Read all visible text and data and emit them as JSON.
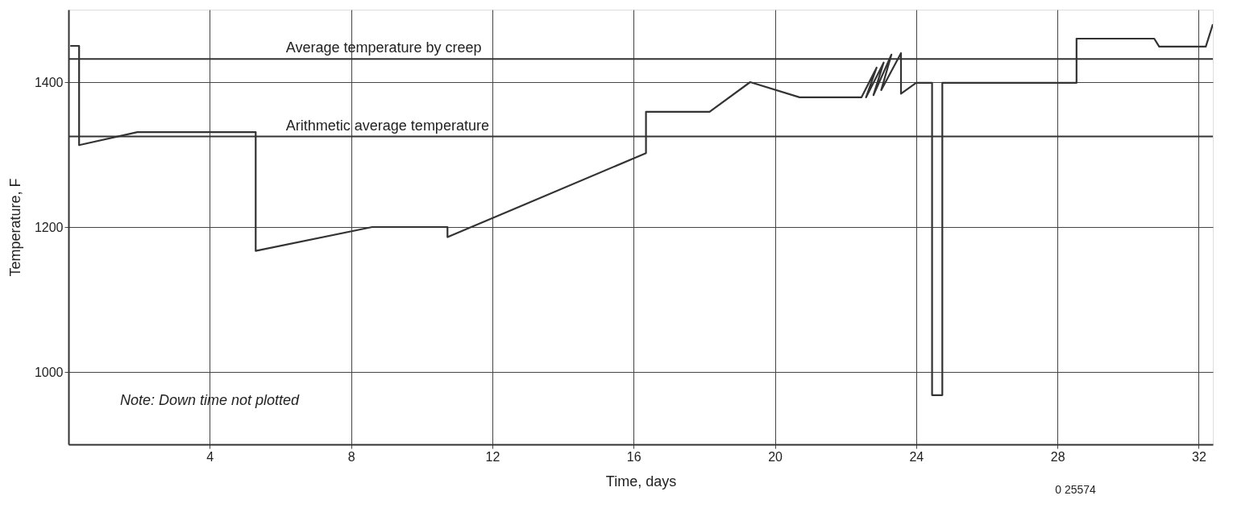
{
  "chart_data": {
    "type": "line",
    "xlabel": "Time, days",
    "ylabel": "Temperature, F",
    "xlim": [
      0,
      32.4
    ],
    "ylim": [
      900,
      1500
    ],
    "xticks": [
      4,
      8,
      12,
      16,
      20,
      24,
      28,
      32
    ],
    "yticks": [
      1000,
      1200,
      1400
    ],
    "grid": true,
    "line_style": "solid",
    "marker": "none",
    "series": [
      {
        "color": "#333333",
        "x": [
          0.05,
          0.3,
          0.3,
          1.95,
          5.3,
          5.3,
          8.6,
          10.73,
          10.73,
          16.35,
          16.35,
          18.15,
          19.3,
          20.7,
          22.45,
          22.88,
          22.58,
          23.08,
          22.79,
          23.3,
          23.01,
          23.57,
          23.57,
          24.0,
          24.45,
          24.45,
          24.74,
          24.74,
          28.54,
          28.54,
          30.74,
          30.88,
          32.2,
          32.4
        ],
        "values": [
          1450,
          1450,
          1313,
          1331,
          1331,
          1167,
          1200,
          1200,
          1186,
          1302,
          1359,
          1359,
          1400,
          1379,
          1379,
          1420,
          1379,
          1427,
          1382,
          1438,
          1389,
          1440,
          1384,
          1399,
          1399,
          968,
          968,
          1399,
          1399,
          1460,
          1460,
          1449,
          1449,
          1480
        ]
      }
    ],
    "ref_lines": [
      {
        "axis": "y",
        "value": 1432,
        "label": "Average temperature by creep"
      },
      {
        "axis": "y",
        "value": 1325,
        "label": "Arithmetic average temperature"
      }
    ],
    "annotations": [
      "Note: Down time not plotted",
      "0 25574"
    ]
  }
}
